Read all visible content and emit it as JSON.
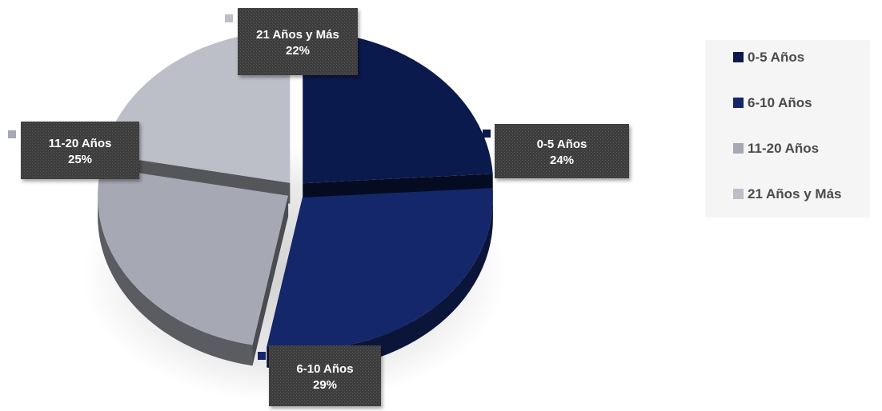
{
  "chart_data": {
    "type": "pie",
    "title": "",
    "categories": [
      "0-5 Años",
      "6-10 Años",
      "11-20 Años",
      "21 Años y Más"
    ],
    "values": [
      24,
      29,
      25,
      22
    ],
    "value_labels": [
      "24%",
      "29%",
      "25%",
      "22%"
    ],
    "colors": [
      "#0b1a4c",
      "#14276a",
      "#a6a8b3",
      "#bcbec8"
    ],
    "exploded": true,
    "three_d": true,
    "legend": {
      "placement": "right",
      "entries": [
        "0-5 Años",
        "6-10 Años",
        "11-20 Años",
        "21 Años y Más"
      ]
    },
    "data_label_style": "dark patterned callout boxes"
  }
}
